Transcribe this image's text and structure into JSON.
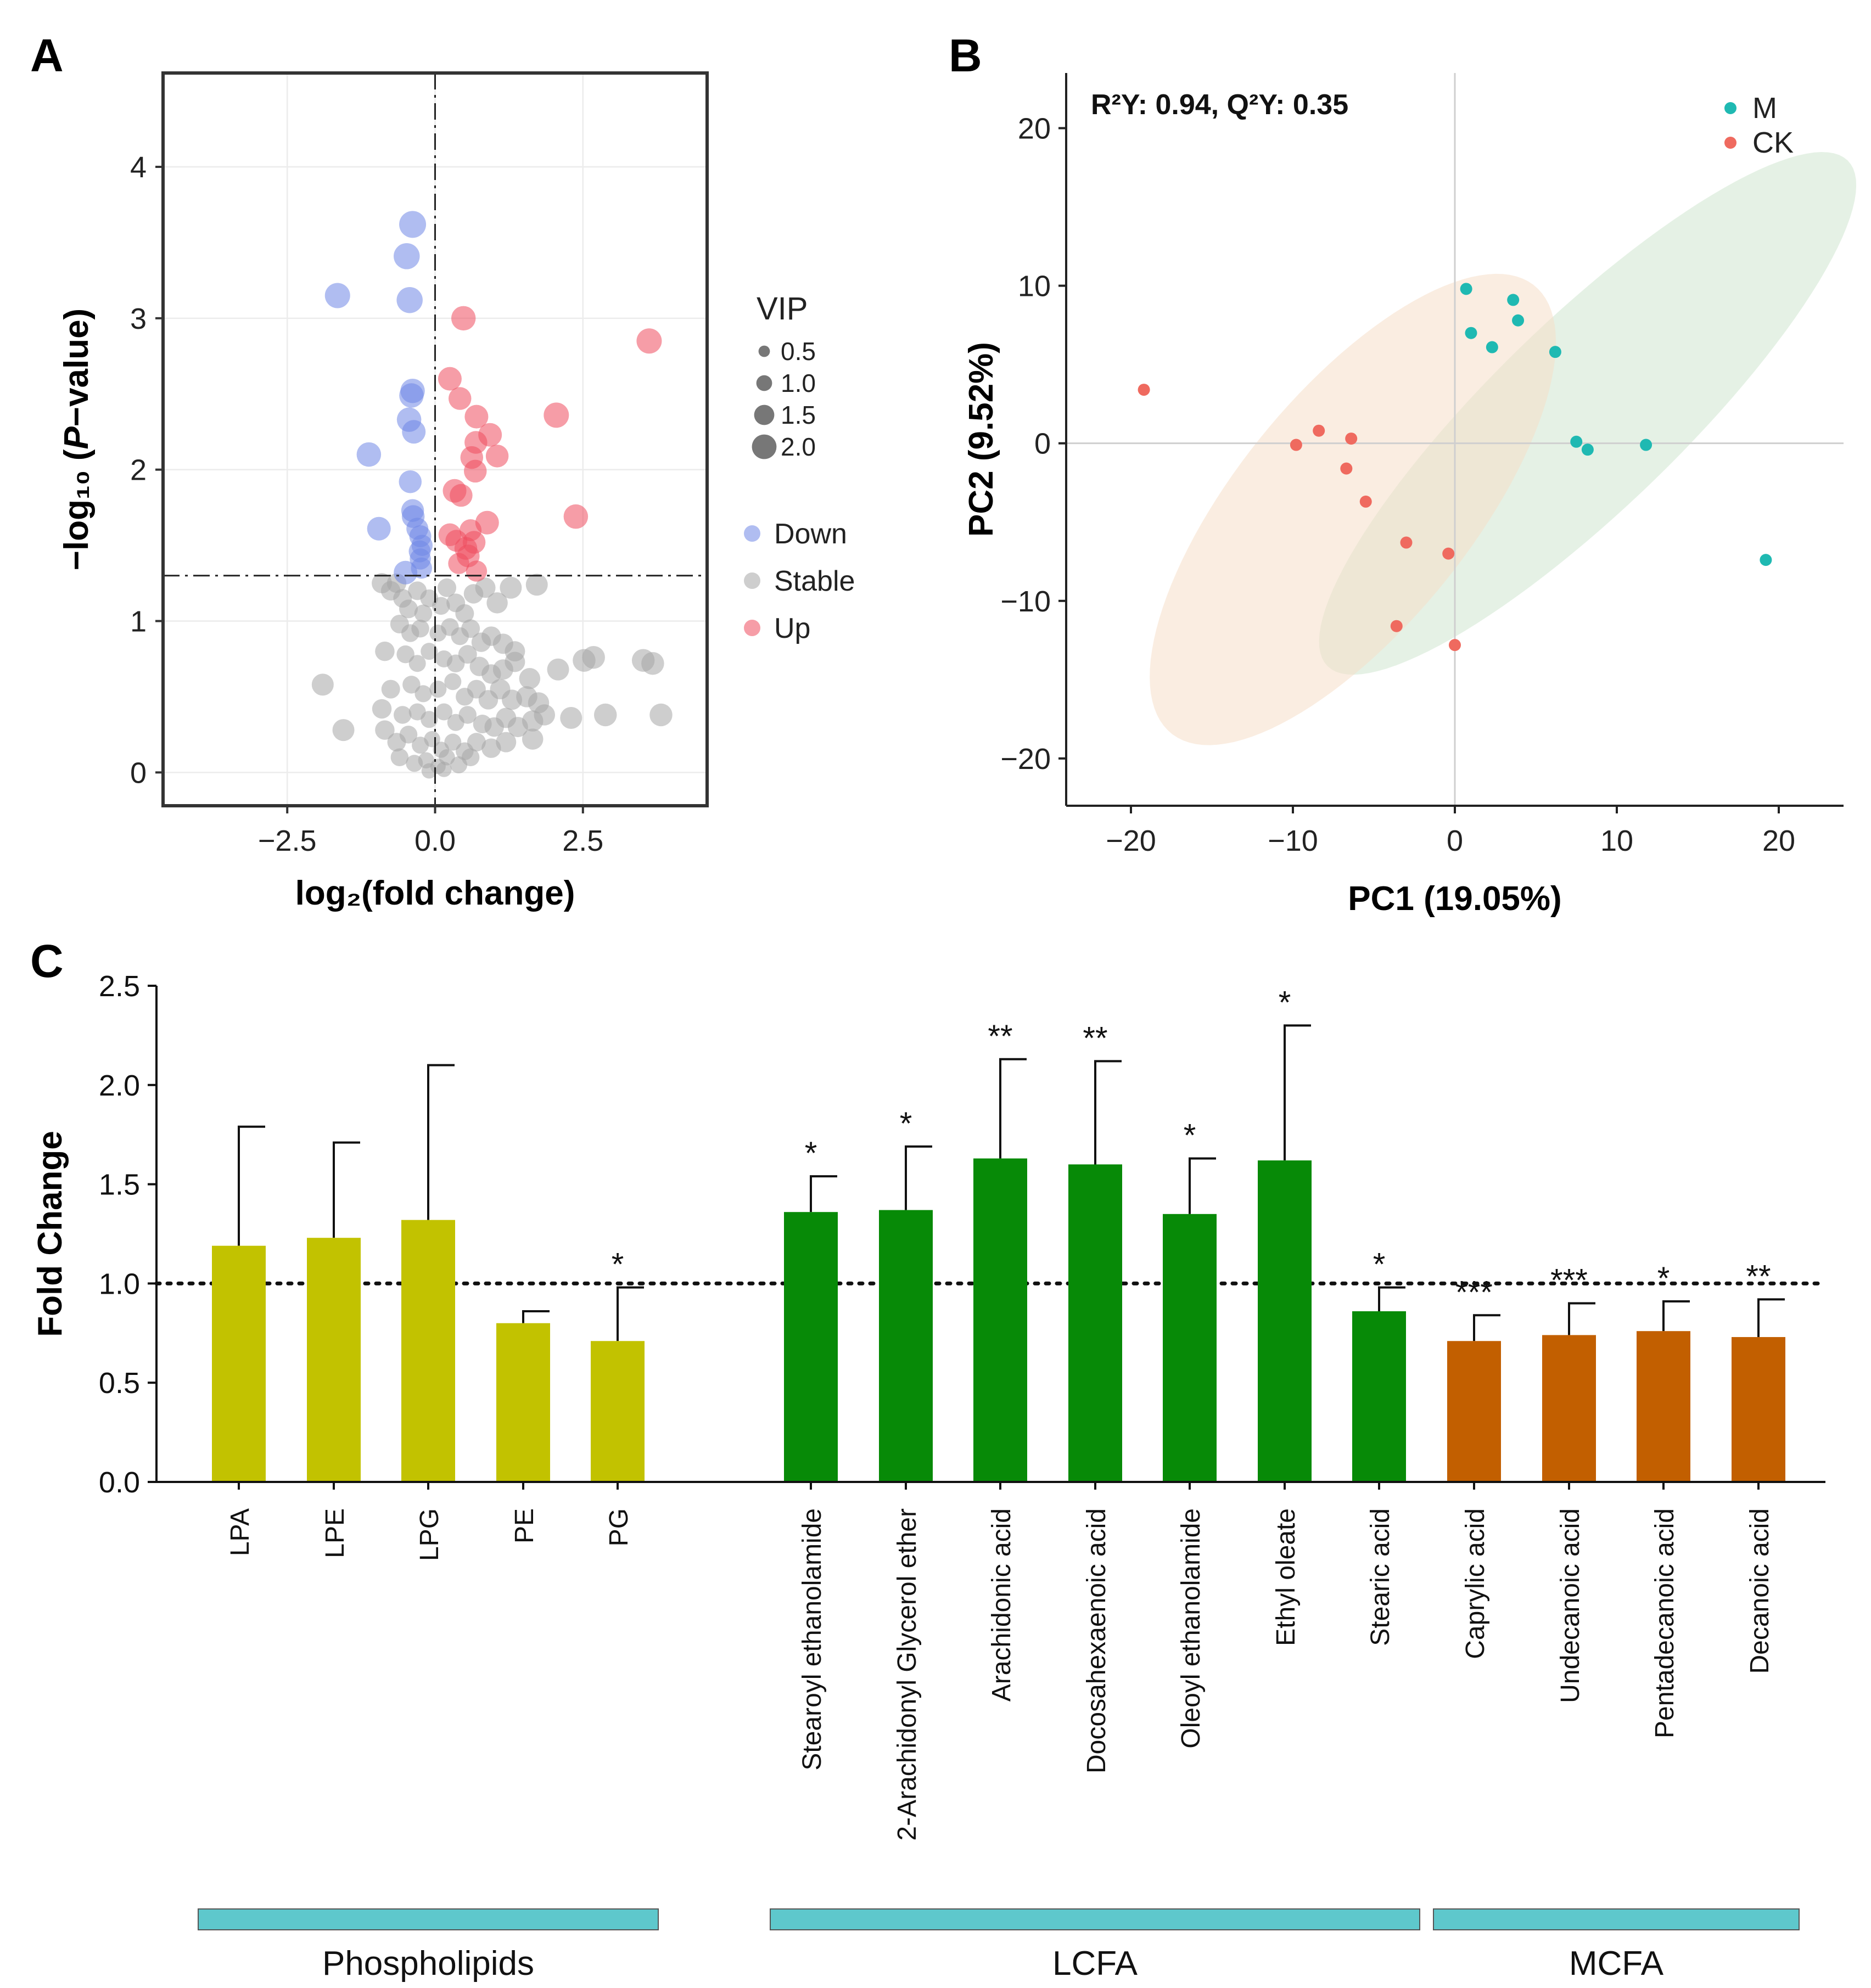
{
  "colors": {
    "down": "#6f86e6",
    "stable": "#a6a6a6",
    "up": "#ef4c5f",
    "group_m": "#1fb9b2",
    "group_ck": "#ef6a5f",
    "ellipse_m": "#cfe6cf",
    "ellipse_ck": "#f6dfc8",
    "phospholipids": "#c2c200",
    "lcfa": "#078a07",
    "mcfa": "#c25f00",
    "category_bar": "#5ec8cc"
  },
  "chart_data": [
    {
      "panel": "A",
      "type": "scatter",
      "xlabel": "log₂(fold change)",
      "ylabel_prefix": "−log₁₀ (",
      "ylabel_italic": "P",
      "ylabel_suffix": "−value)",
      "xlim": [
        -4.6,
        4.6
      ],
      "ylim": [
        -0.22,
        4.62
      ],
      "xticks": [
        {
          "v": -2.5,
          "label": "−2.5"
        },
        {
          "v": 0,
          "label": "0.0"
        },
        {
          "v": 2.5,
          "label": "2.5"
        }
      ],
      "yticks": [
        {
          "v": 0,
          "label": "0"
        },
        {
          "v": 1,
          "label": "1"
        },
        {
          "v": 2,
          "label": "2"
        },
        {
          "v": 3,
          "label": "3"
        },
        {
          "v": 4,
          "label": "4"
        }
      ],
      "vline_x": 0,
      "hline_y": 1.3,
      "legend": {
        "size_title": "VIP",
        "sizes": [
          {
            "label": "0.5",
            "vip": 0.5
          },
          {
            "label": "1.0",
            "vip": 1.0
          },
          {
            "label": "1.5",
            "vip": 1.5
          },
          {
            "label": "2.0",
            "vip": 2.0
          }
        ],
        "groups": [
          {
            "label": "Down",
            "key": "down"
          },
          {
            "label": "Stable",
            "key": "stable"
          },
          {
            "label": "Up",
            "key": "up"
          }
        ]
      },
      "points_down": [
        [
          -0.38,
          3.62,
          2.2
        ],
        [
          -0.48,
          3.41,
          2.1
        ],
        [
          -1.65,
          3.15,
          2.0
        ],
        [
          -0.43,
          3.12,
          2.1
        ],
        [
          -0.38,
          2.52,
          1.9
        ],
        [
          -0.4,
          2.49,
          1.9
        ],
        [
          -0.44,
          2.33,
          1.9
        ],
        [
          -0.36,
          2.25,
          1.8
        ],
        [
          -1.12,
          2.1,
          1.9
        ],
        [
          -0.42,
          1.92,
          1.7
        ],
        [
          -0.38,
          1.73,
          1.7
        ],
        [
          -0.37,
          1.69,
          1.7
        ],
        [
          -0.95,
          1.61,
          1.8
        ],
        [
          -0.3,
          1.61,
          1.6
        ],
        [
          -0.25,
          1.56,
          1.6
        ],
        [
          -0.22,
          1.5,
          1.5
        ],
        [
          -0.26,
          1.46,
          1.6
        ],
        [
          -0.25,
          1.41,
          1.5
        ],
        [
          -0.5,
          1.32,
          1.8
        ],
        [
          -0.23,
          1.35,
          1.5
        ]
      ],
      "points_up": [
        [
          0.48,
          3.0,
          1.9
        ],
        [
          3.62,
          2.85,
          2.0
        ],
        [
          0.25,
          2.6,
          1.8
        ],
        [
          0.42,
          2.47,
          1.7
        ],
        [
          2.05,
          2.36,
          2.0
        ],
        [
          0.7,
          2.35,
          1.8
        ],
        [
          0.93,
          2.23,
          1.8
        ],
        [
          0.69,
          2.18,
          1.7
        ],
        [
          1.05,
          2.09,
          1.7
        ],
        [
          0.62,
          2.08,
          1.7
        ],
        [
          0.68,
          1.99,
          1.7
        ],
        [
          0.33,
          1.86,
          1.8
        ],
        [
          0.44,
          1.83,
          1.7
        ],
        [
          2.38,
          1.69,
          1.9
        ],
        [
          0.88,
          1.65,
          1.8
        ],
        [
          0.6,
          1.6,
          1.6
        ],
        [
          0.25,
          1.57,
          1.7
        ],
        [
          0.66,
          1.52,
          1.7
        ],
        [
          0.36,
          1.53,
          1.6
        ],
        [
          0.52,
          1.48,
          1.7
        ],
        [
          0.56,
          1.43,
          1.7
        ],
        [
          0.4,
          1.38,
          1.5
        ],
        [
          0.7,
          1.33,
          1.5
        ]
      ],
      "points_stable": [
        [
          -0.9,
          1.25,
          1.4
        ],
        [
          -0.75,
          1.2,
          1.3
        ],
        [
          -0.65,
          1.25,
          1.3
        ],
        [
          -0.55,
          1.15,
          1.2
        ],
        [
          -0.45,
          1.08,
          1.2
        ],
        [
          -0.3,
          1.2,
          1.2
        ],
        [
          -0.2,
          1.05,
          1.1
        ],
        [
          -0.1,
          1.15,
          1.1
        ],
        [
          0.1,
          1.1,
          1.1
        ],
        [
          0.2,
          1.22,
          1.2
        ],
        [
          0.35,
          1.12,
          1.2
        ],
        [
          0.5,
          1.05,
          1.2
        ],
        [
          0.65,
          1.18,
          1.3
        ],
        [
          0.85,
          1.22,
          1.4
        ],
        [
          1.28,
          1.22,
          1.6
        ],
        [
          1.72,
          1.24,
          1.6
        ],
        [
          1.05,
          1.12,
          1.5
        ],
        [
          -0.6,
          0.98,
          1.2
        ],
        [
          -0.42,
          0.92,
          1.1
        ],
        [
          -0.25,
          0.95,
          1.1
        ],
        [
          0.05,
          0.92,
          1.0
        ],
        [
          0.25,
          0.96,
          1.1
        ],
        [
          0.42,
          0.9,
          1.1
        ],
        [
          0.6,
          0.95,
          1.2
        ],
        [
          0.78,
          0.86,
          1.3
        ],
        [
          0.95,
          0.9,
          1.3
        ],
        [
          1.15,
          0.85,
          1.4
        ],
        [
          1.35,
          0.8,
          1.4
        ],
        [
          -0.85,
          0.8,
          1.3
        ],
        [
          -0.5,
          0.78,
          1.1
        ],
        [
          -0.3,
          0.72,
          1.0
        ],
        [
          -0.1,
          0.8,
          1.0
        ],
        [
          0.15,
          0.75,
          1.0
        ],
        [
          0.35,
          0.72,
          1.1
        ],
        [
          0.55,
          0.78,
          1.2
        ],
        [
          0.75,
          0.7,
          1.3
        ],
        [
          0.95,
          0.65,
          1.3
        ],
        [
          1.15,
          0.68,
          1.4
        ],
        [
          1.35,
          0.73,
          1.4
        ],
        [
          1.6,
          0.62,
          1.5
        ],
        [
          2.08,
          0.68,
          1.6
        ],
        [
          2.52,
          0.74,
          1.7
        ],
        [
          2.68,
          0.76,
          1.7
        ],
        [
          3.52,
          0.74,
          1.7
        ],
        [
          3.68,
          0.72,
          1.7
        ],
        [
          -1.9,
          0.58,
          1.6
        ],
        [
          -0.75,
          0.55,
          1.2
        ],
        [
          -0.4,
          0.58,
          1.1
        ],
        [
          -0.2,
          0.52,
          1.0
        ],
        [
          0.05,
          0.55,
          1.0
        ],
        [
          0.3,
          0.6,
          1.0
        ],
        [
          0.5,
          0.5,
          1.1
        ],
        [
          0.7,
          0.55,
          1.2
        ],
        [
          0.9,
          0.48,
          1.3
        ],
        [
          1.1,
          0.55,
          1.4
        ],
        [
          1.3,
          0.48,
          1.4
        ],
        [
          1.55,
          0.5,
          1.5
        ],
        [
          1.75,
          0.46,
          1.5
        ],
        [
          -0.9,
          0.42,
          1.3
        ],
        [
          -0.55,
          0.38,
          1.1
        ],
        [
          -0.3,
          0.4,
          1.0
        ],
        [
          -0.1,
          0.35,
          1.0
        ],
        [
          0.15,
          0.4,
          1.0
        ],
        [
          0.35,
          0.33,
          1.0
        ],
        [
          0.55,
          0.38,
          1.1
        ],
        [
          0.8,
          0.32,
          1.2
        ],
        [
          1.0,
          0.3,
          1.3
        ],
        [
          1.2,
          0.36,
          1.4
        ],
        [
          1.4,
          0.3,
          1.4
        ],
        [
          1.65,
          0.34,
          1.5
        ],
        [
          1.85,
          0.38,
          1.5
        ],
        [
          2.3,
          0.36,
          1.6
        ],
        [
          2.88,
          0.38,
          1.7
        ],
        [
          3.82,
          0.38,
          1.7
        ],
        [
          -1.55,
          0.28,
          1.6
        ],
        [
          -0.85,
          0.28,
          1.3
        ],
        [
          -0.65,
          0.2,
          1.2
        ],
        [
          -0.45,
          0.25,
          1.1
        ],
        [
          -0.25,
          0.18,
          1.0
        ],
        [
          -0.05,
          0.22,
          0.9
        ],
        [
          0.1,
          0.15,
          0.9
        ],
        [
          0.3,
          0.2,
          1.0
        ],
        [
          0.5,
          0.14,
          1.1
        ],
        [
          0.7,
          0.2,
          1.2
        ],
        [
          0.95,
          0.16,
          1.3
        ],
        [
          1.2,
          0.2,
          1.4
        ],
        [
          1.65,
          0.22,
          1.5
        ],
        [
          -0.6,
          0.1,
          1.1
        ],
        [
          -0.35,
          0.06,
          1.0
        ],
        [
          -0.15,
          0.08,
          0.9
        ],
        [
          0.05,
          0.04,
          0.8
        ],
        [
          0.2,
          0.1,
          0.9
        ],
        [
          0.4,
          0.05,
          1.0
        ],
        [
          0.6,
          0.1,
          1.1
        ],
        [
          -0.1,
          0.01,
          0.8
        ],
        [
          0.15,
          0.02,
          0.8
        ]
      ]
    },
    {
      "panel": "B",
      "type": "scatter",
      "xlabel": "PC1 (19.05%)",
      "ylabel": "PC2 (9.52%)",
      "annotation": "R²Y: 0.94, Q²Y: 0.35",
      "xlim": [
        -24,
        24
      ],
      "ylim": [
        -23,
        23.5
      ],
      "xticks": [
        {
          "v": -20,
          "label": "−20"
        },
        {
          "v": -10,
          "label": "−10"
        },
        {
          "v": 0,
          "label": "0"
        },
        {
          "v": 10,
          "label": "10"
        },
        {
          "v": 20,
          "label": "20"
        }
      ],
      "yticks": [
        {
          "v": -20,
          "label": "−20"
        },
        {
          "v": -10,
          "label": "−10"
        },
        {
          "v": 0,
          "label": "0"
        },
        {
          "v": 10,
          "label": "10"
        },
        {
          "v": 20,
          "label": "20"
        }
      ],
      "legend": [
        {
          "label": "M",
          "key": "group_m"
        },
        {
          "label": "CK",
          "key": "group_ck"
        }
      ],
      "ellipses": [
        {
          "group": "M",
          "cx": 8.2,
          "cy": 1.9,
          "rx": 22.7,
          "ry": 5.9,
          "angle_deg": 45
        },
        {
          "group": "CK",
          "cx": -6.3,
          "cy": -4.2,
          "rx": 18.1,
          "ry": 7.3,
          "angle_deg": 52
        }
      ],
      "series": [
        {
          "name": "M",
          "points": [
            [
              0.7,
              9.8
            ],
            [
              3.6,
              9.1
            ],
            [
              1.0,
              7.0
            ],
            [
              3.9,
              7.8
            ],
            [
              2.3,
              6.1
            ],
            [
              6.2,
              5.8
            ],
            [
              7.5,
              0.1
            ],
            [
              8.2,
              -0.4
            ],
            [
              11.8,
              -0.1
            ],
            [
              19.2,
              -7.4
            ]
          ]
        },
        {
          "name": "CK",
          "points": [
            [
              -19.2,
              3.4
            ],
            [
              -9.8,
              -0.1
            ],
            [
              -8.4,
              0.8
            ],
            [
              -6.4,
              0.3
            ],
            [
              -6.7,
              -1.6
            ],
            [
              -5.5,
              -3.7
            ],
            [
              -3.0,
              -6.3
            ],
            [
              -0.4,
              -7.0
            ],
            [
              -3.6,
              -11.6
            ],
            [
              0.0,
              -12.8
            ]
          ]
        }
      ]
    },
    {
      "panel": "C",
      "type": "bar",
      "ylabel": "Fold Change",
      "ylim": [
        0,
        2.5
      ],
      "yticks": [
        {
          "v": 0,
          "label": "0.0"
        },
        {
          "v": 0.5,
          "label": "0.5"
        },
        {
          "v": 1.0,
          "label": "1.0"
        },
        {
          "v": 1.5,
          "label": "1.5"
        },
        {
          "v": 2.0,
          "label": "2.0"
        },
        {
          "v": 2.5,
          "label": "2.5"
        }
      ],
      "reference_line": 1.0,
      "groups": [
        {
          "label": "Phospholipids",
          "key": "phospholipids",
          "first": 0,
          "last": 4
        },
        {
          "label": "LCFA",
          "key": "lcfa",
          "first": 5,
          "last": 11
        },
        {
          "label": "MCFA",
          "key": "mcfa",
          "first": 12,
          "last": 15
        }
      ],
      "bars": [
        {
          "name": "LPA",
          "value": 1.19,
          "error": 1.79,
          "sig": "",
          "group": "phospholipids"
        },
        {
          "name": "LPE",
          "value": 1.23,
          "error": 1.71,
          "sig": "",
          "group": "phospholipids"
        },
        {
          "name": "LPG",
          "value": 1.32,
          "error": 2.1,
          "sig": "",
          "group": "phospholipids"
        },
        {
          "name": "PE",
          "value": 0.8,
          "error": 0.86,
          "sig": "",
          "group": "phospholipids"
        },
        {
          "name": "PG",
          "value": 0.71,
          "error": 0.98,
          "sig": "*",
          "group": "phospholipids"
        },
        {
          "name": "Stearoyl ethanolamide",
          "value": 1.36,
          "error": 1.54,
          "sig": "*",
          "group": "lcfa"
        },
        {
          "name": "2-Arachidonyl Glycerol ether",
          "value": 1.37,
          "error": 1.69,
          "sig": "*",
          "group": "lcfa"
        },
        {
          "name": "Arachidonic acid",
          "value": 1.63,
          "error": 2.13,
          "sig": "**",
          "group": "lcfa"
        },
        {
          "name": "Docosahexaenoic acid",
          "value": 1.6,
          "error": 2.12,
          "sig": "**",
          "group": "lcfa"
        },
        {
          "name": "Oleoyl ethanolamide",
          "value": 1.35,
          "error": 1.63,
          "sig": "*",
          "group": "lcfa"
        },
        {
          "name": "Ethyl oleate",
          "value": 1.62,
          "error": 2.3,
          "sig": "*",
          "group": "lcfa"
        },
        {
          "name": "Stearic acid",
          "value": 0.86,
          "error": 0.98,
          "sig": "*",
          "group": "lcfa"
        },
        {
          "name": "Caprylic acid",
          "value": 0.71,
          "error": 0.84,
          "sig": "***",
          "group": "mcfa"
        },
        {
          "name": "Undecanoic acid",
          "value": 0.74,
          "error": 0.9,
          "sig": "***",
          "group": "mcfa"
        },
        {
          "name": "Pentadecanoic acid",
          "value": 0.76,
          "error": 0.91,
          "sig": "*",
          "group": "mcfa"
        },
        {
          "name": "Decanoic acid",
          "value": 0.73,
          "error": 0.92,
          "sig": "**",
          "group": "mcfa"
        }
      ]
    }
  ]
}
